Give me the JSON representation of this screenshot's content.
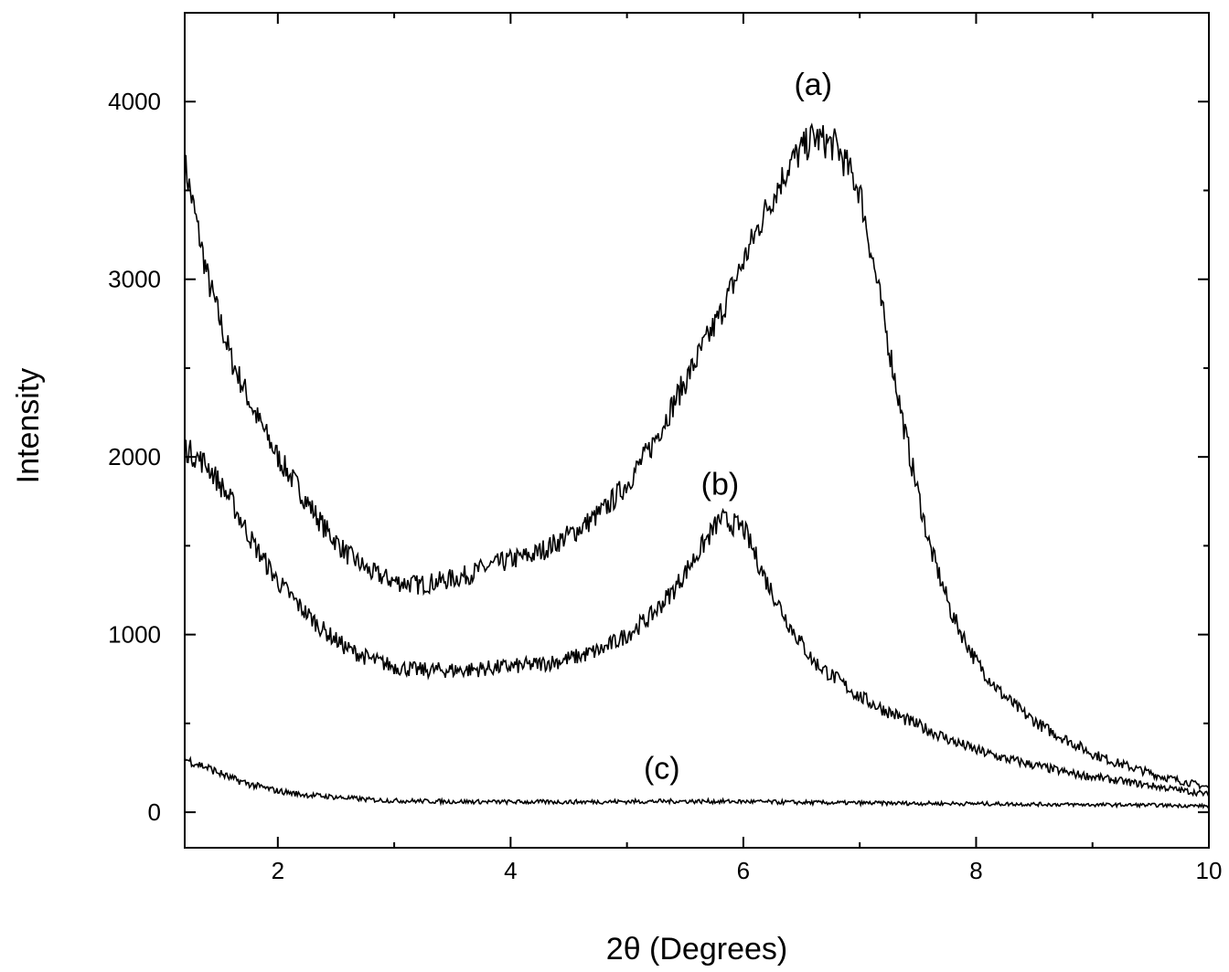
{
  "chart_data": {
    "type": "line",
    "title": "",
    "xlabel": "2θ (Degrees)",
    "ylabel": "Intensity",
    "xlim": [
      1.2,
      10
    ],
    "ylim": [
      -200,
      4500
    ],
    "xticks": [
      2,
      4,
      6,
      8,
      10
    ],
    "yticks": [
      0,
      1000,
      2000,
      3000,
      4000
    ],
    "grid": false,
    "legend": "none",
    "series": [
      {
        "name": "(a)",
        "x": [
          1.2,
          1.4,
          1.6,
          1.8,
          2.0,
          2.2,
          2.4,
          2.6,
          2.8,
          3.0,
          3.2,
          3.4,
          3.6,
          3.8,
          4.0,
          4.2,
          4.4,
          4.6,
          4.8,
          5.0,
          5.2,
          5.4,
          5.6,
          5.8,
          6.0,
          6.2,
          6.4,
          6.6,
          6.8,
          7.0,
          7.2,
          7.4,
          7.6,
          7.8,
          8.0,
          8.2,
          8.4,
          8.6,
          8.8,
          9.0,
          9.2,
          9.4,
          9.6,
          9.8,
          10.0
        ],
        "y": [
          3650,
          3000,
          2550,
          2250,
          2000,
          1800,
          1600,
          1450,
          1350,
          1300,
          1280,
          1300,
          1330,
          1380,
          1420,
          1450,
          1520,
          1600,
          1700,
          1850,
          2050,
          2300,
          2550,
          2800,
          3100,
          3400,
          3650,
          3800,
          3750,
          3500,
          2800,
          2100,
          1500,
          1100,
          850,
          680,
          560,
          470,
          400,
          330,
          280,
          240,
          200,
          170,
          140
        ]
      },
      {
        "name": "(b)",
        "x": [
          1.2,
          1.4,
          1.6,
          1.8,
          2.0,
          2.2,
          2.4,
          2.6,
          2.8,
          3.0,
          3.2,
          3.4,
          3.6,
          3.8,
          4.0,
          4.2,
          4.4,
          4.6,
          4.8,
          5.0,
          5.2,
          5.4,
          5.6,
          5.8,
          6.0,
          6.2,
          6.4,
          6.6,
          6.8,
          7.0,
          7.2,
          7.4,
          7.6,
          7.8,
          8.0,
          8.2,
          8.4,
          8.6,
          8.8,
          9.0,
          9.2,
          9.4,
          9.6,
          9.8,
          10.0
        ],
        "y": [
          2050,
          1950,
          1750,
          1500,
          1300,
          1150,
          1020,
          920,
          860,
          820,
          800,
          800,
          800,
          810,
          820,
          830,
          850,
          880,
          920,
          1000,
          1100,
          1250,
          1450,
          1650,
          1600,
          1300,
          1050,
          850,
          750,
          650,
          580,
          520,
          460,
          400,
          350,
          310,
          280,
          250,
          220,
          200,
          180,
          160,
          140,
          120,
          100
        ]
      },
      {
        "name": "(c)",
        "x": [
          1.2,
          1.4,
          1.6,
          1.8,
          2.0,
          2.2,
          2.4,
          2.6,
          2.8,
          3.0,
          3.5,
          4.0,
          4.5,
          5.0,
          5.5,
          6.0,
          6.5,
          7.0,
          7.5,
          8.0,
          8.5,
          9.0,
          9.5,
          10.0
        ],
        "y": [
          300,
          250,
          190,
          150,
          120,
          100,
          90,
          80,
          70,
          65,
          60,
          58,
          58,
          60,
          62,
          60,
          55,
          52,
          50,
          48,
          45,
          42,
          40,
          35
        ]
      }
    ],
    "annotations": [
      {
        "text": "(a)",
        "x": 6.6,
        "y": 4100
      },
      {
        "text": "(b)",
        "x": 5.8,
        "y": 1850
      },
      {
        "text": "(c)",
        "x": 5.3,
        "y": 250
      }
    ]
  }
}
